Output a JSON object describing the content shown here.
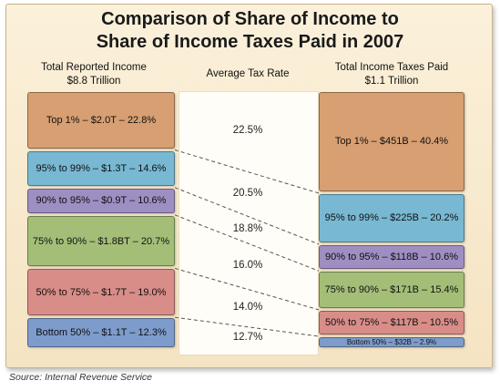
{
  "chart_data": {
    "type": "table",
    "title": "Comparison of Share of Income to Share of Income Taxes Paid in 2007",
    "title_line1": "Comparison of Share of Income to",
    "title_line2": "Share of Income Taxes Paid in 2007",
    "columns": {
      "income_header_line1": "Total Reported Income",
      "income_header_line2": "$8.8 Trillion",
      "rate_header": "Average Tax Rate",
      "tax_header_line1": "Total Income Taxes Paid",
      "tax_header_line2": "$1.1 Trillion"
    },
    "groups": [
      {
        "income_label": "Top 1% – $2.0T – 22.8%",
        "income_share": 22.8,
        "tax_label": "Top 1% – $451B – 40.4%",
        "tax_share": 40.4,
        "rate": "22.5%",
        "color": "#d79f72"
      },
      {
        "income_label": "95% to 99% – $1.3T – 14.6%",
        "income_share": 14.6,
        "tax_label": "95% to 99% – $225B – 20.2%",
        "tax_share": 20.2,
        "rate": "20.5%",
        "color": "#78b8d2"
      },
      {
        "income_label": "90% to 95% – $0.9T – 10.6%",
        "income_share": 10.6,
        "tax_label": "90% to 95% – $118B – 10.6%",
        "tax_share": 10.6,
        "rate": "18.8%",
        "color": "#9f8ec2"
      },
      {
        "income_label": "75% to 90% – $1.8BT – 20.7%",
        "income_share": 20.7,
        "tax_label": "75% to 90% – $171B – 15.4%",
        "tax_share": 15.4,
        "rate": "16.0%",
        "color": "#a4be78"
      },
      {
        "income_label": "50% to 75% – $1.7T – 19.0%",
        "income_share": 19.0,
        "tax_label": "50% to 75% – $117B – 10.5%",
        "tax_share": 10.5,
        "rate": "14.0%",
        "color": "#d98d88"
      },
      {
        "income_label": "Bottom 50% – $1.1T – 12.3%",
        "income_share": 12.3,
        "tax_label": "Bottom 50% – $32B – 2.9%",
        "tax_share": 2.9,
        "rate": "12.7%",
        "color": "#7d9ccb"
      }
    ]
  },
  "source": "Source: Internal Revenue Service"
}
